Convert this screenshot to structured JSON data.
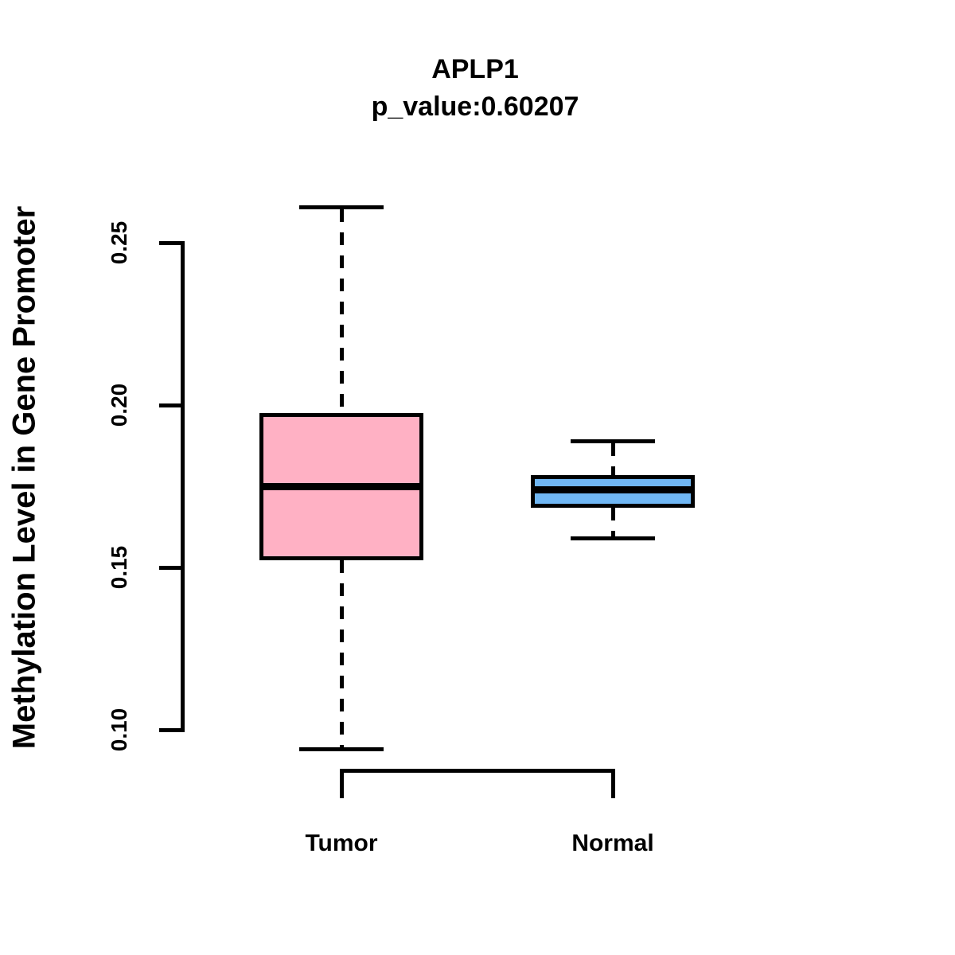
{
  "chart_data": {
    "type": "boxplot",
    "title": "APLP1",
    "subtitle": "p_value:0.60207",
    "xlabel": "",
    "ylabel": "Methylation Level in Gene Promoter",
    "ylim": [
      0.1,
      0.25
    ],
    "yticks": [
      {
        "value": 0.25,
        "label": "0.25"
      },
      {
        "value": 0.2,
        "label": "0.20"
      },
      {
        "value": 0.15,
        "label": "0.15"
      },
      {
        "value": 0.1,
        "label": "0.10"
      }
    ],
    "categories": [
      "Tumor",
      "Normal"
    ],
    "series": [
      {
        "name": "Tumor",
        "fill_color": "#FFB1C4",
        "whisker_low": 0.094,
        "q1": 0.153,
        "median": 0.175,
        "q3": 0.197,
        "whisker_high": 0.261,
        "outliers": []
      },
      {
        "name": "Normal",
        "fill_color": "#70B7F4",
        "whisker_low": 0.159,
        "q1": 0.169,
        "median": 0.174,
        "q3": 0.178,
        "whisker_high": 0.189,
        "outliers": []
      }
    ],
    "legend": null,
    "grid": false,
    "whisker_line_style": "dashed",
    "colors": {
      "stroke": "#000000",
      "background": "#FFFFFF"
    }
  }
}
